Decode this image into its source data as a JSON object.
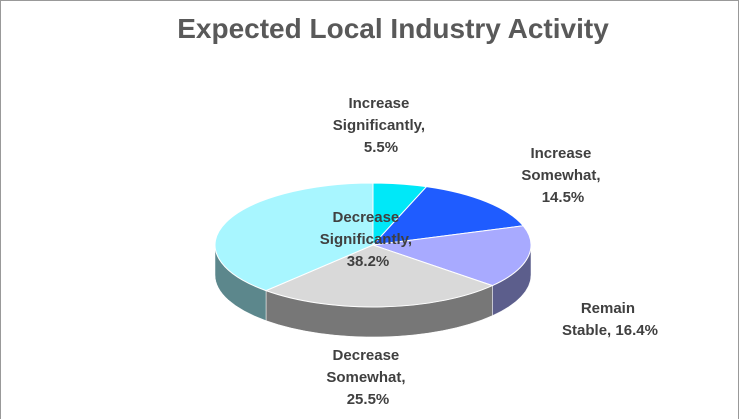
{
  "chart_data": {
    "type": "pie",
    "title": "Expected Local Industry Activity",
    "values": [
      5.5,
      14.5,
      16.4,
      25.5,
      38.2
    ],
    "value_labels": [
      "Increase Significantly, 5.5%",
      "Increase Somewhat, 14.5%",
      "Remain Stable, 16.4%",
      "Decrease Somewhat, 25.5%",
      "Decrease Significantly, 38.2%"
    ],
    "colors": [
      "#00e8f8",
      "#1f5cff",
      "#a8aaff",
      "#d9d9d9",
      "#a8f6ff"
    ]
  }
}
